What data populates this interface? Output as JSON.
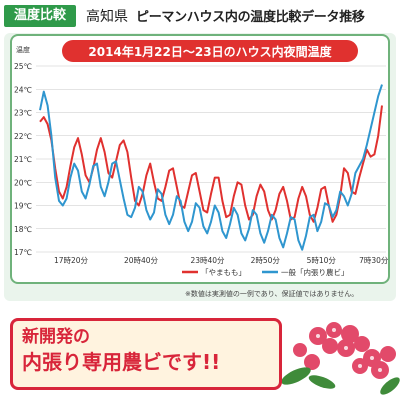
{
  "header": {
    "badge": "温度比較",
    "prefecture": "高知県",
    "title": "ピーマンハウス内の温度比較データ推移"
  },
  "note": "※数値は実測値の一例であり、保証値ではありません。",
  "banner": {
    "line1": "新開発の",
    "line2": "内張り専用農ビです!!"
  },
  "colors": {
    "accent_green": "#2f9a4a",
    "series_red": "#e0312f",
    "series_blue": "#2f96cf",
    "banner_red": "#d8253a"
  },
  "chart_data": {
    "type": "line",
    "title": "2014年1月22日〜23日のハウス内夜間温度",
    "ylabel": "温度",
    "ylim": [
      17,
      25
    ],
    "y_ticks": [
      "17℃",
      "18℃",
      "19℃",
      "20℃",
      "21℃",
      "22℃",
      "23℃",
      "24℃",
      "25℃"
    ],
    "x_ticks": [
      "17時20分",
      "20時40分",
      "23時40分",
      "2時50分",
      "5時10分",
      "7時30分"
    ],
    "legend": [
      "「やまもも」",
      "一般「内張り農ビ」"
    ],
    "legend_position": "bottom",
    "grid": true,
    "series": [
      {
        "name": "「やまもも」",
        "values": [
          22.6,
          22.8,
          22.5,
          21.8,
          20.6,
          19.6,
          19.3,
          19.8,
          20.7,
          21.5,
          21.9,
          21.2,
          20.3,
          20.0,
          20.6,
          21.4,
          21.9,
          21.3,
          20.4,
          20.2,
          20.9,
          21.6,
          21.8,
          21.3,
          20.2,
          19.2,
          19.0,
          19.5,
          20.3,
          20.8,
          20.0,
          19.3,
          19.2,
          19.8,
          20.5,
          20.6,
          19.8,
          19.0,
          18.9,
          19.6,
          20.3,
          20.4,
          19.6,
          18.8,
          18.7,
          19.5,
          20.2,
          20.2,
          19.2,
          18.5,
          18.6,
          19.4,
          20.0,
          19.9,
          19.0,
          18.4,
          18.6,
          19.4,
          19.9,
          19.6,
          18.8,
          18.4,
          18.8,
          19.5,
          19.8,
          19.2,
          18.4,
          18.5,
          19.3,
          19.8,
          19.4,
          18.6,
          18.3,
          18.9,
          19.7,
          19.8,
          19.0,
          18.3,
          18.6,
          19.4,
          20.6,
          20.4,
          19.6,
          19.5,
          20.2,
          20.8,
          21.4,
          21.1,
          21.2,
          22.0,
          23.3
        ]
      },
      {
        "name": "一般「内張り農ビ」",
        "values": [
          23.1,
          23.9,
          23.3,
          22.0,
          20.2,
          19.2,
          19.0,
          19.3,
          20.2,
          20.8,
          20.5,
          19.6,
          19.3,
          19.9,
          20.7,
          20.8,
          19.8,
          19.4,
          20.0,
          20.8,
          20.9,
          20.1,
          19.3,
          18.6,
          18.5,
          18.9,
          19.8,
          19.6,
          18.8,
          18.4,
          18.7,
          19.7,
          19.5,
          18.6,
          18.2,
          18.6,
          19.4,
          19.2,
          18.3,
          17.9,
          18.3,
          19.1,
          18.9,
          18.1,
          17.8,
          18.3,
          19.0,
          18.7,
          17.9,
          17.6,
          18.2,
          18.9,
          18.6,
          17.8,
          17.5,
          18.0,
          18.8,
          18.6,
          17.8,
          17.4,
          17.9,
          18.6,
          18.4,
          17.6,
          17.2,
          17.8,
          18.5,
          18.4,
          17.5,
          17.1,
          17.7,
          18.5,
          18.6,
          17.9,
          18.3,
          19.1,
          19.0,
          18.5,
          18.8,
          19.6,
          19.4,
          19.0,
          19.5,
          20.4,
          20.7,
          21.0,
          21.6,
          22.3,
          23.0,
          23.7,
          24.2
        ]
      }
    ]
  }
}
